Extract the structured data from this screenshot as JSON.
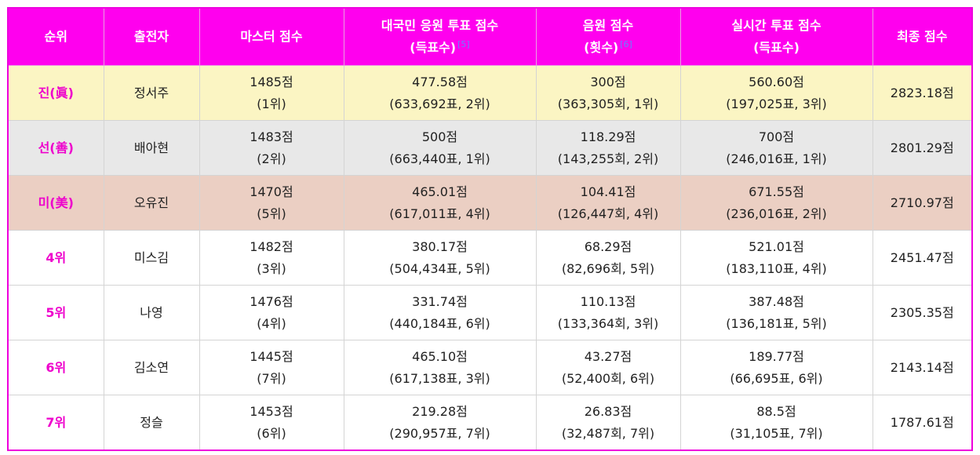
{
  "colors": {
    "header": "#ff00ee",
    "rank": "#ee00cc",
    "gold": "#fbf5c3",
    "silver": "#e8e8e8",
    "bronze": "#ebcfc3"
  },
  "headers": {
    "rank": "순위",
    "contestant": "출전자",
    "master": "마스터 점수",
    "national_line1": "대국민 응원 투표 점수",
    "national_line2": "(득표수)",
    "national_ref": "[5]",
    "stream_line1": "음원 점수",
    "stream_line2": "(횟수)",
    "stream_ref": "[6]",
    "realtime_line1": "실시간 투표 점수",
    "realtime_line2": "(득표수)",
    "final": "최종 점수"
  },
  "rows": [
    {
      "rank": "진(眞)",
      "name": "정서주",
      "master": "1485점",
      "master_sub": "(1위)",
      "national": "477.58점",
      "national_sub": "(633,692표, 2위)",
      "stream": "300점",
      "stream_sub": "(363,305회, 1위)",
      "realtime": "560.60점",
      "realtime_sub": "(197,025표, 3위)",
      "final": "2823.18점"
    },
    {
      "rank": "선(善)",
      "name": "배아현",
      "master": "1483점",
      "master_sub": "(2위)",
      "national": "500점",
      "national_sub": "(663,440표, 1위)",
      "stream": "118.29점",
      "stream_sub": "(143,255회, 2위)",
      "realtime": "700점",
      "realtime_sub": "(246,016표, 1위)",
      "final": "2801.29점"
    },
    {
      "rank": "미(美)",
      "name": "오유진",
      "master": "1470점",
      "master_sub": "(5위)",
      "national": "465.01점",
      "national_sub": "(617,011표, 4위)",
      "stream": "104.41점",
      "stream_sub": "(126,447회, 4위)",
      "realtime": "671.55점",
      "realtime_sub": "(236,016표, 2위)",
      "final": "2710.97점"
    },
    {
      "rank": "4위",
      "name": "미스김",
      "master": "1482점",
      "master_sub": "(3위)",
      "national": "380.17점",
      "national_sub": "(504,434표, 5위)",
      "stream": "68.29점",
      "stream_sub": "(82,696회, 5위)",
      "realtime": "521.01점",
      "realtime_sub": "(183,110표, 4위)",
      "final": "2451.47점"
    },
    {
      "rank": "5위",
      "name": "나영",
      "master": "1476점",
      "master_sub": "(4위)",
      "national": "331.74점",
      "national_sub": "(440,184표, 6위)",
      "stream": "110.13점",
      "stream_sub": "(133,364회, 3위)",
      "realtime": "387.48점",
      "realtime_sub": "(136,181표, 5위)",
      "final": "2305.35점"
    },
    {
      "rank": "6위",
      "name": "김소연",
      "master": "1445점",
      "master_sub": "(7위)",
      "national": "465.10점",
      "national_sub": "(617,138표, 3위)",
      "stream": "43.27점",
      "stream_sub": "(52,400회, 6위)",
      "realtime": "189.77점",
      "realtime_sub": "(66,695표, 6위)",
      "final": "2143.14점"
    },
    {
      "rank": "7위",
      "name": "정슬",
      "master": "1453점",
      "master_sub": "(6위)",
      "national": "219.28점",
      "national_sub": "(290,957표, 7위)",
      "stream": "26.83점",
      "stream_sub": "(32,487회, 7위)",
      "realtime": "88.5점",
      "realtime_sub": "(31,105표, 7위)",
      "final": "1787.61점"
    }
  ]
}
